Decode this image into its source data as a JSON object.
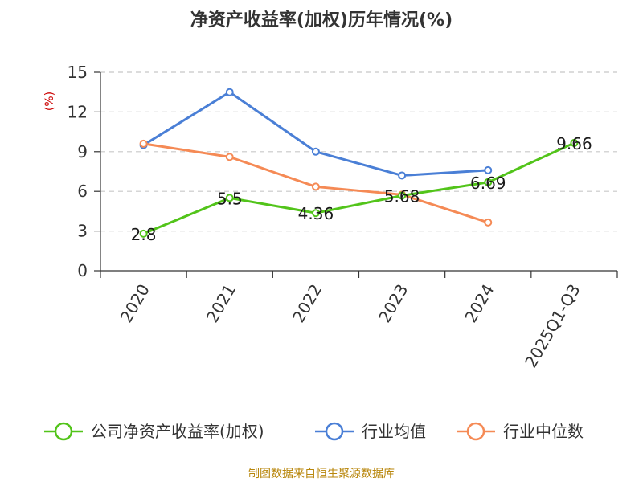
{
  "chart_data": {
    "type": "line",
    "title": "净资产收益率(加权)历年情况(%)",
    "ylabel": "(%)",
    "ylim": [
      0,
      15
    ],
    "yticks": [
      0,
      3,
      6,
      9,
      12,
      15
    ],
    "categories": [
      "2020",
      "2021",
      "2022",
      "2023",
      "2024",
      "2025Q1-Q3"
    ],
    "grid": true,
    "legend_position": "bottom",
    "series": [
      {
        "name": "公司净资产收益率(加权)",
        "color": "#52c41a",
        "values": [
          2.8,
          5.5,
          4.36,
          5.68,
          6.69,
          9.66
        ],
        "show_labels": true
      },
      {
        "name": "行业均值",
        "color": "#4a7fd6",
        "values": [
          9.5,
          13.5,
          9.0,
          7.2,
          7.6,
          null
        ],
        "show_labels": false
      },
      {
        "name": "行业中位数",
        "color": "#f58a55",
        "values": [
          9.6,
          8.6,
          6.35,
          5.75,
          3.65,
          null
        ],
        "show_labels": false
      }
    ],
    "data_labels": [
      "2.8",
      "5.5",
      "4.36",
      "5.68",
      "6.69",
      "9.66"
    ]
  },
  "footer": {
    "source": "制图数据来自恒生聚源数据库"
  }
}
